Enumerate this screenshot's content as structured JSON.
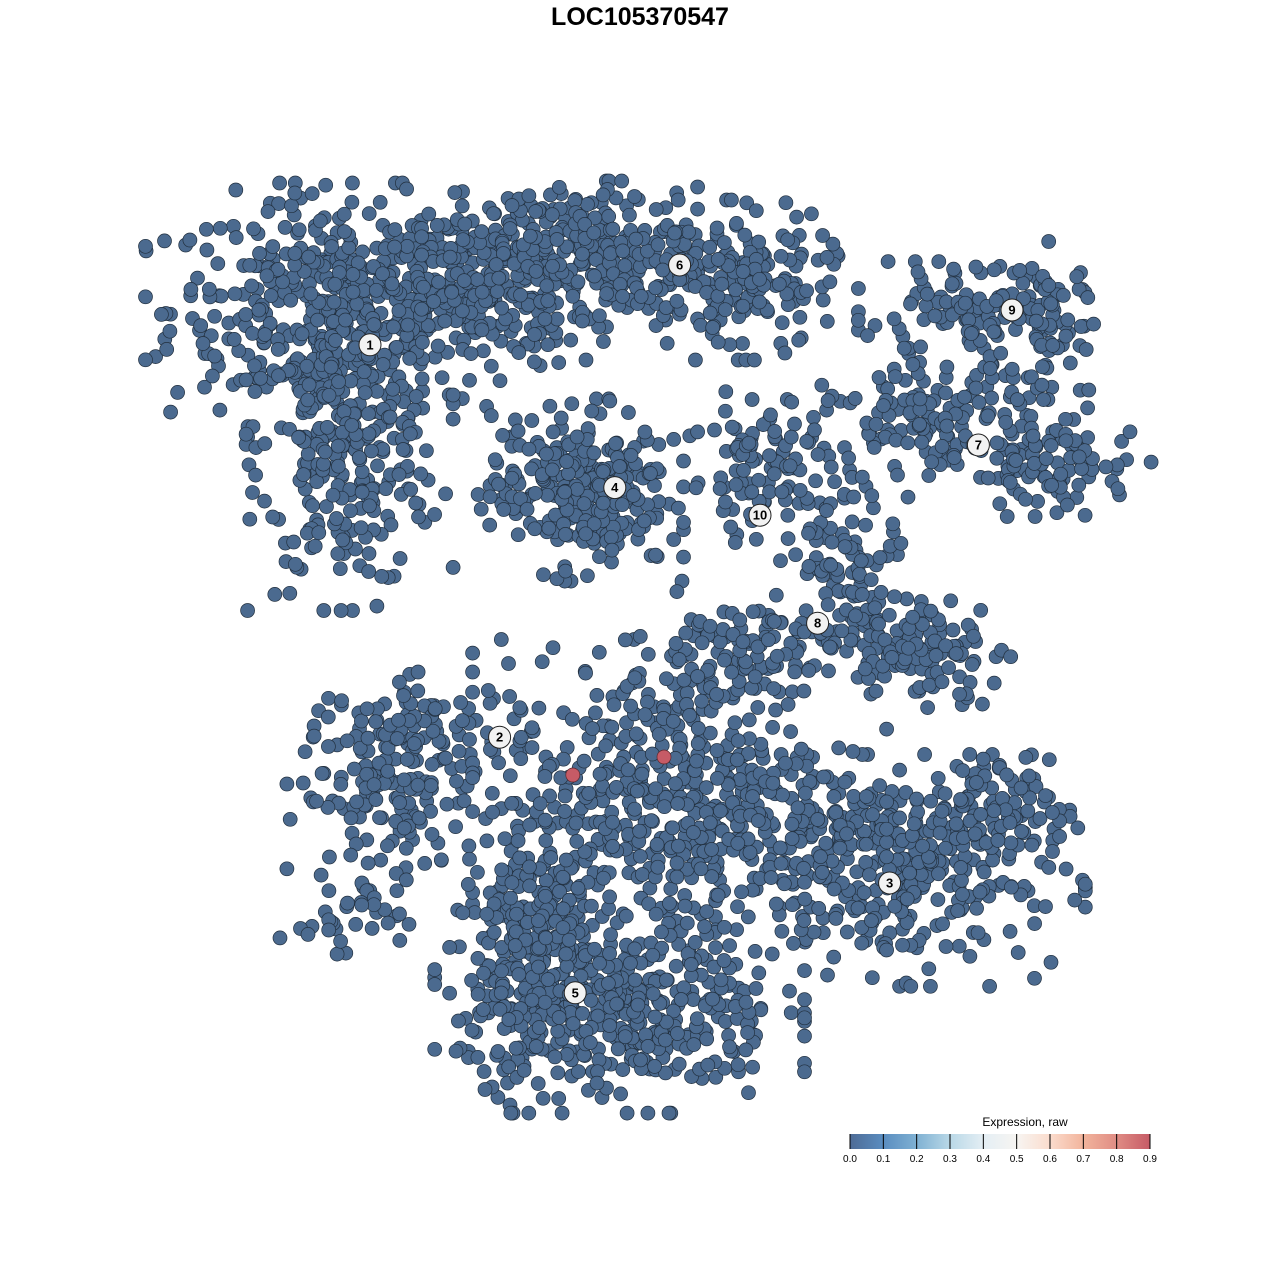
{
  "chart_data": {
    "type": "scatter",
    "title": "LOC105370547",
    "xlabel": "",
    "ylabel": "",
    "axes_visible": false,
    "grid": false,
    "xlim": [
      -45,
      45
    ],
    "ylim": [
      -45,
      45
    ],
    "point_color_low": "#4B6A8F",
    "point_outline": "#22303F",
    "clusters": [
      {
        "label": "1",
        "center": [
          -22.5,
          24.6
        ],
        "lobes": [
          [
            -25.8,
            27.5,
            6.7,
            4.6,
            420
          ],
          [
            -24.2,
            15.8,
            3.75,
            5.8,
            280
          ],
          [
            -14.2,
            29.2,
            5,
            3.3,
            230
          ]
        ]
      },
      {
        "label": "2",
        "center": [
          -11.7,
          -8.1
        ],
        "lobes": [
          [
            -20.8,
            -13.3,
            3.75,
            3.3,
            140
          ],
          [
            -17.5,
            -7.5,
            4.2,
            2.1,
            90
          ],
          [
            -25,
            -23.3,
            2.5,
            1.25,
            30
          ]
        ]
      },
      {
        "label": "3",
        "center": [
          20.8,
          -20.25
        ],
        "lobes": [
          [
            21.7,
            -19.2,
            6.7,
            4.2,
            330
          ],
          [
            28.3,
            -14.2,
            2.9,
            2.1,
            80
          ],
          [
            3.3,
            -13.3,
            7.5,
            5.8,
            550
          ]
        ]
      },
      {
        "label": "4",
        "center": [
          -2.1,
          12.7
        ],
        "lobes": [
          [
            -5,
            12.5,
            3.75,
            3.3,
            290
          ]
        ]
      },
      {
        "label": "5",
        "center": [
          -5.4,
          -29.4
        ],
        "lobes": [
          [
            -1.7,
            -30.8,
            6.7,
            3.75,
            420
          ],
          [
            -9.2,
            -24.2,
            2.9,
            4.6,
            190
          ]
        ]
      },
      {
        "label": "6",
        "center": [
          3.3,
          31.25
        ],
        "lobes": [
          [
            -6.7,
            32.5,
            5,
            2.5,
            240
          ],
          [
            6.7,
            30,
            5,
            2.9,
            240
          ]
        ]
      },
      {
        "label": "7",
        "center": [
          28.2,
          16.25
        ],
        "lobes": [
          [
            25.8,
            18.3,
            5,
            2.1,
            150
          ],
          [
            35,
            14.2,
            3.3,
            1.7,
            80
          ]
        ]
      },
      {
        "label": "8",
        "center": [
          14.8,
          1.4
        ],
        "lobes": [
          [
            17.5,
            6.7,
            2.1,
            3.75,
            100
          ],
          [
            23.3,
            -0.8,
            3.3,
            2.1,
            120
          ],
          [
            8.3,
            -0.8,
            4.2,
            2.1,
            110
          ]
        ]
      },
      {
        "label": "9",
        "center": [
          31,
          27.5
        ],
        "lobes": [
          [
            27.5,
            26.7,
            4.6,
            2.1,
            120
          ],
          [
            34.2,
            26.7,
            1.7,
            2.9,
            50
          ]
        ]
      },
      {
        "label": "10",
        "center": [
          10,
          10.4
        ],
        "lobes": [
          [
            10.4,
            14.2,
            3.3,
            3.3,
            100
          ]
        ]
      }
    ],
    "highlighted_points": [
      {
        "x": -5.6,
        "y": -11.25,
        "value": 0.9
      },
      {
        "x": 2.0,
        "y": -9.75,
        "value": 0.9
      }
    ],
    "colorbar": {
      "title": "Expression, raw",
      "ticks": [
        "0.0",
        "0.1",
        "0.2",
        "0.3",
        "0.4",
        "0.5",
        "0.6",
        "0.7",
        "0.8",
        "0.9"
      ],
      "range": [
        0,
        0.9
      ],
      "colors": [
        "#4E6B96",
        "#5A8DC0",
        "#7FB1D3",
        "#B9D8E7",
        "#E4EEF4",
        "#F7F5F2",
        "#FBDCCD",
        "#F2B49C",
        "#E08C84",
        "#C65B66"
      ],
      "placement": "bottom-right"
    }
  }
}
